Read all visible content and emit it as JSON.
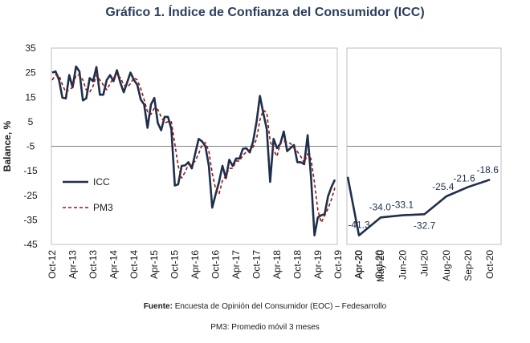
{
  "title": "Gráfico 1. Índice de Confianza del Consumidor (ICC)",
  "source_label": "Fuente:",
  "source_text": "Encuesta de Opinión del Consumidor (EOC) – Fedesarrollo",
  "note": "PM3: Promedio móvil 3 meses",
  "chart_data": [
    {
      "type": "line",
      "ylabel": "Balance, %",
      "ylim": [
        -45,
        35
      ],
      "yticks": [
        35,
        25,
        15,
        5,
        -5,
        -15,
        -25,
        -35,
        -45
      ],
      "legend_position": "left",
      "x_start": "2012-10",
      "x_end": "2020-10",
      "x_tick_labels": [
        "Oct-12",
        "Apr-13",
        "Oct-13",
        "Apr-14",
        "Oct-14",
        "Apr-15",
        "Oct-15",
        "Apr-16",
        "Oct-16",
        "Apr-17",
        "Oct-17",
        "Apr-18",
        "Oct-18",
        "Apr-19",
        "Oct-19",
        "Apr-20",
        "Oct-20"
      ],
      "series": [
        {
          "name": "ICC",
          "color": "#1f2f4a",
          "values": [
            25,
            25.5,
            22,
            14.8,
            14.5,
            24,
            19,
            27.5,
            25.5,
            13.7,
            14.5,
            22.8,
            21.5,
            27.3,
            16,
            16,
            22,
            24,
            21.5,
            26,
            21,
            17,
            21,
            25,
            22,
            20,
            14,
            12,
            2.5,
            12,
            14.7,
            4.5,
            1.5,
            7,
            7,
            2,
            -21,
            -20.5,
            -13,
            -12.8,
            -11.5,
            -14,
            -8,
            -2,
            -3,
            -5,
            -13,
            -30,
            -24.5,
            -19.5,
            -13,
            -18,
            -10.5,
            -13,
            -10,
            -10,
            -6,
            -5.8,
            -7.5,
            -3,
            5,
            15.5,
            8.5,
            2,
            -19.5,
            -2,
            -5.8,
            -4,
            1,
            -7,
            -5.7,
            -4.5,
            -11.5,
            -11.5,
            -12.3,
            -0.5,
            -17.5,
            -41.3,
            -34,
            -33.1,
            -32.7,
            -25.4,
            -21.6,
            -18.6
          ]
        },
        {
          "name": "PM3",
          "color": "#8b1a1a",
          "dashed": true,
          "values": [
            22,
            24,
            24,
            20,
            17,
            18,
            19,
            24,
            24,
            22,
            18,
            17,
            19.5,
            24,
            22,
            20,
            18,
            20.5,
            23,
            24,
            23,
            20,
            19,
            20.5,
            23,
            22,
            18.5,
            14,
            9,
            8,
            10.5,
            10,
            7,
            4.5,
            5,
            5,
            -4,
            -13,
            -18,
            -15.5,
            -12.5,
            -12.5,
            -11,
            -8,
            -4.5,
            -3.5,
            -7,
            -16,
            -22.5,
            -24.5,
            -19,
            -17,
            -14,
            -14,
            -11,
            -11,
            -8.7,
            -7.3,
            -6.4,
            -5.4,
            -2,
            5.8,
            9.7,
            8.7,
            -3,
            -6.5,
            -9.1,
            -3.9,
            -2.9,
            -3.3,
            -3.9,
            -5.7,
            -7.2,
            -9.2,
            -11.8,
            -8.1,
            -10.1,
            -19.8,
            -31,
            -36.1,
            -33.3,
            -30.4,
            -26.6,
            -21.9
          ]
        }
      ]
    },
    {
      "type": "line",
      "categories": [
        "Apr-20",
        "May-20",
        "Jun-20",
        "Jul-20",
        "Aug-20",
        "Sep-20",
        "Oct-20"
      ],
      "series": [
        {
          "name": "ICC",
          "values": [
            -41.3,
            -34.0,
            -33.1,
            -32.7,
            -25.4,
            -21.6,
            -18.6
          ],
          "data_labels": [
            "-41.3",
            "-34.0",
            "-33.1",
            "-32.7",
            "-25.4",
            "-21.6",
            "-18.6"
          ]
        }
      ]
    }
  ]
}
